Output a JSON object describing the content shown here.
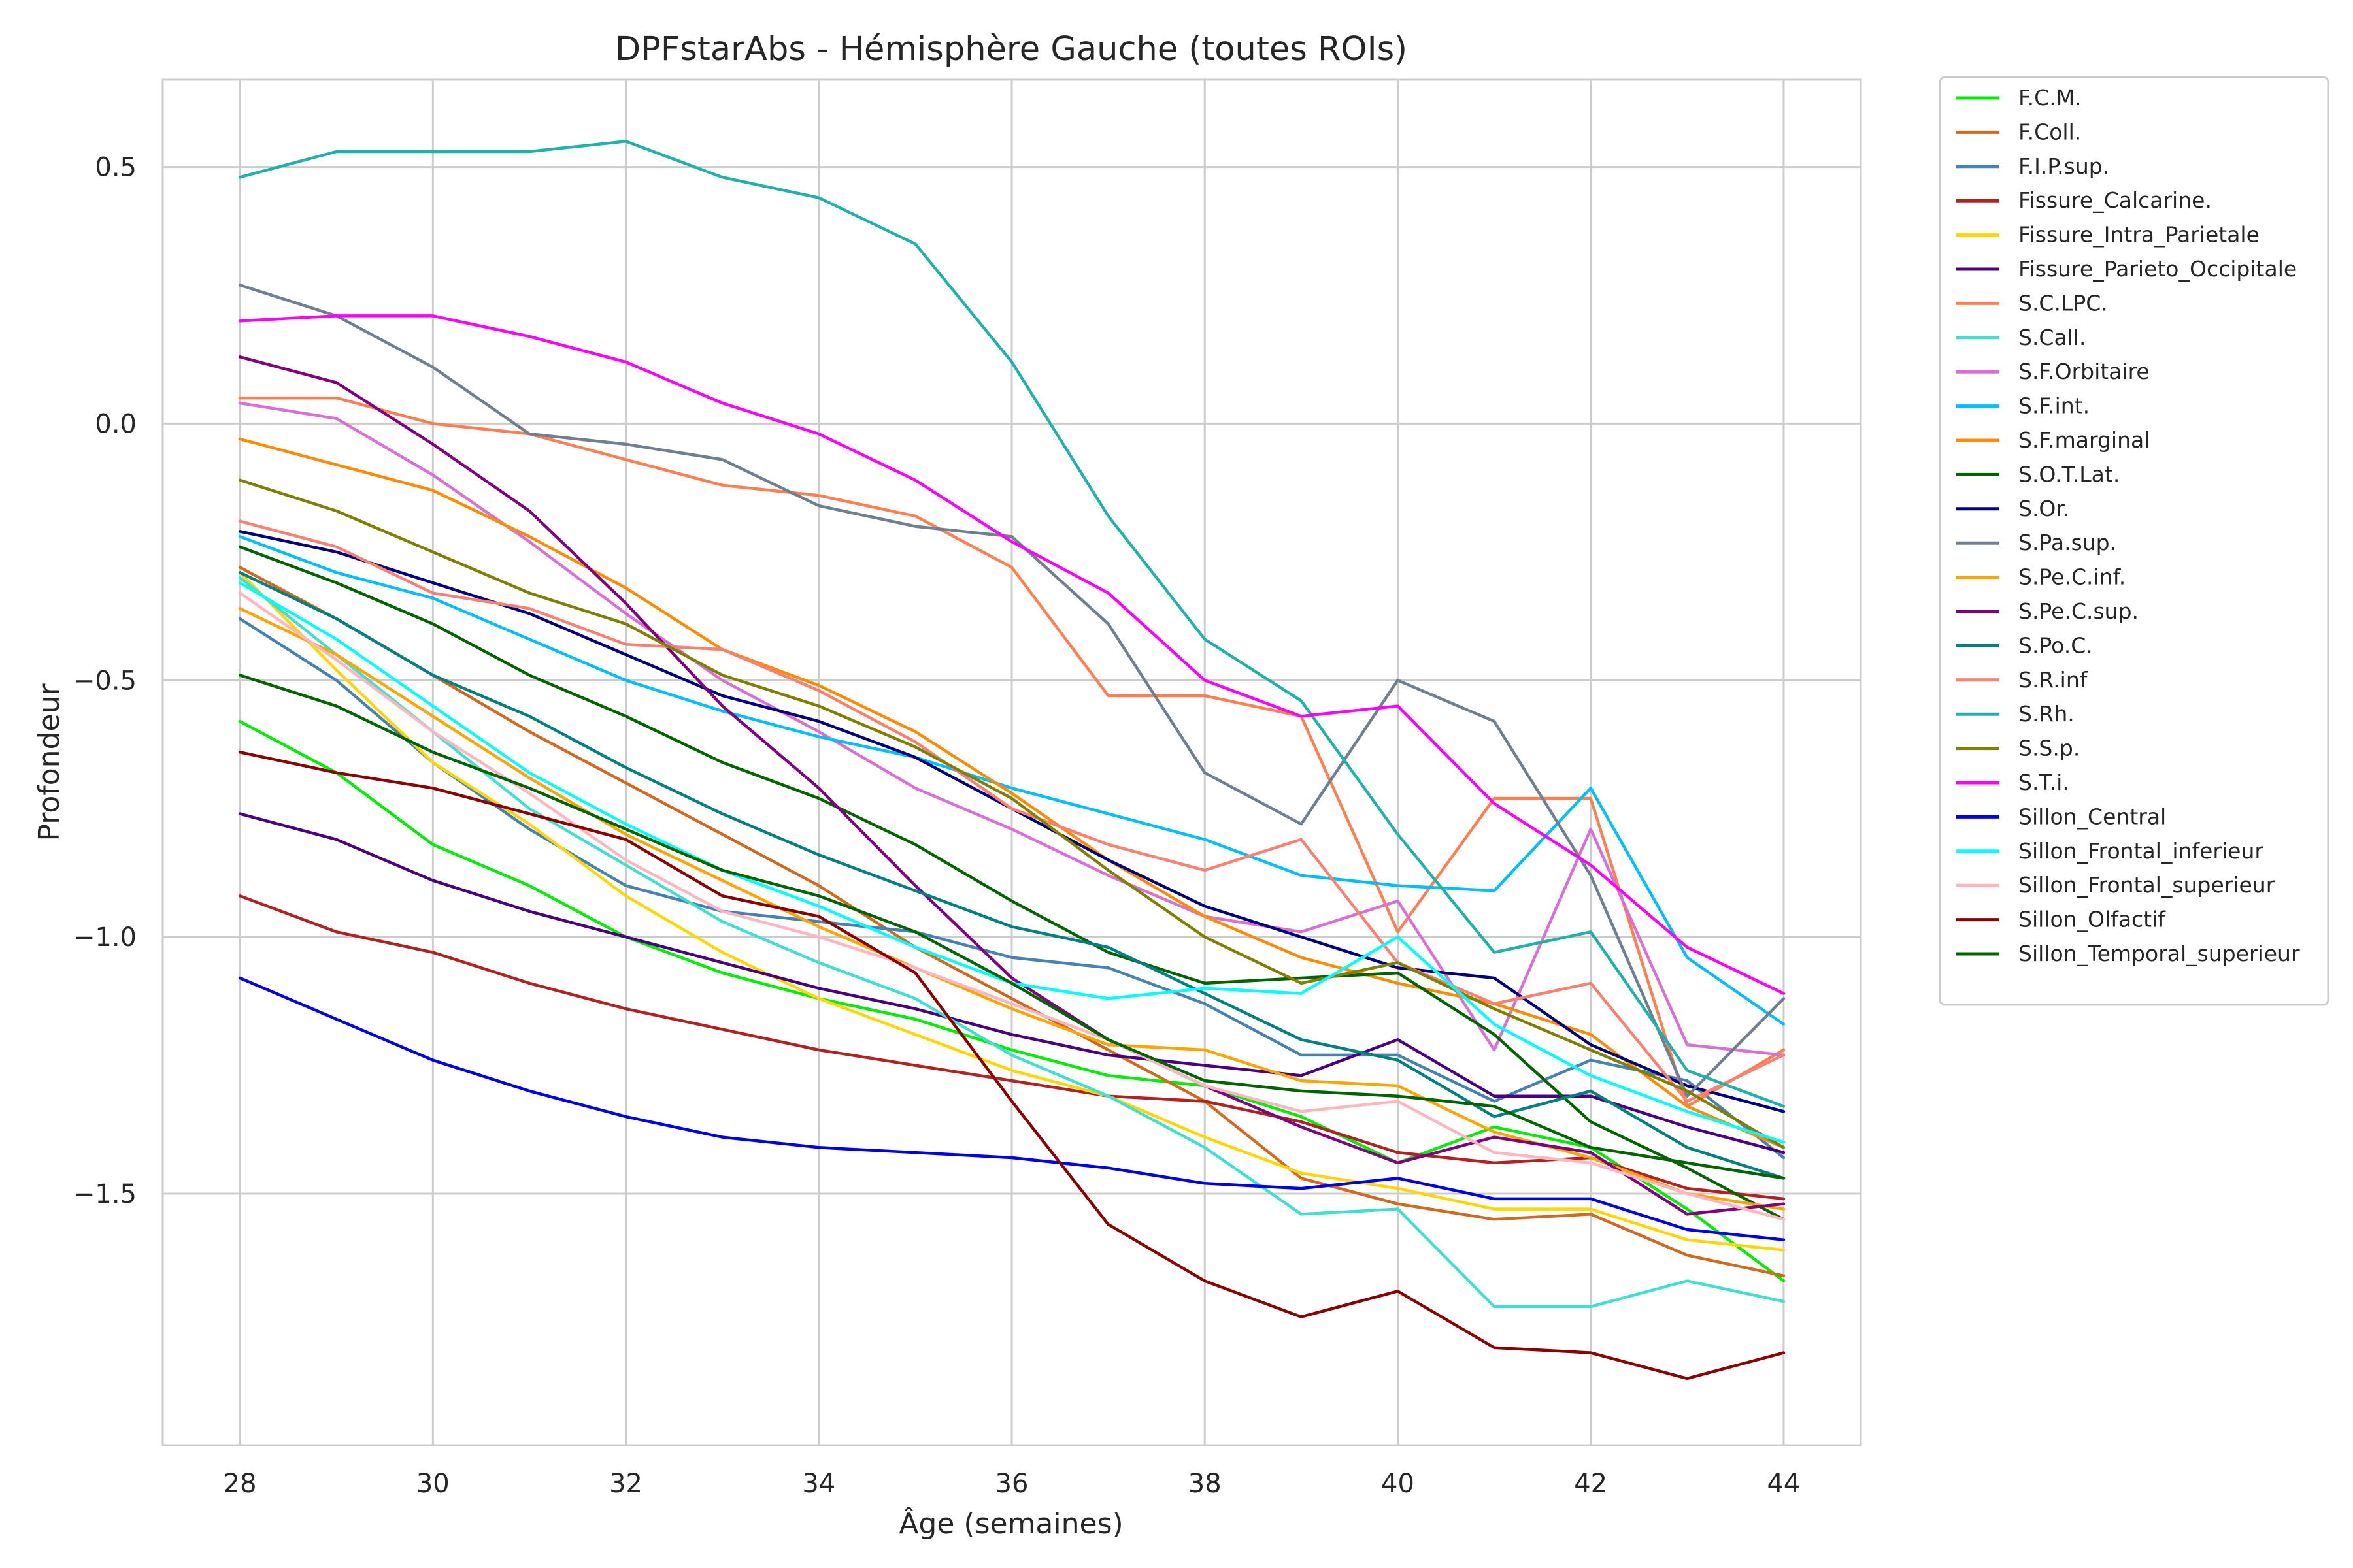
{
  "chart_data": {
    "type": "line",
    "title": "DPFstarAbs - Hémisphère Gauche (toutes ROIs)",
    "xlabel": "Âge (semaines)",
    "ylabel": "Profondeur",
    "xlim": [
      27.2,
      44.8
    ],
    "ylim": [
      -1.99,
      0.67
    ],
    "x_ticks": [
      28,
      30,
      32,
      34,
      36,
      38,
      40,
      42,
      44
    ],
    "x_tick_labels": [
      "28",
      "30",
      "32",
      "34",
      "36",
      "38",
      "40",
      "42",
      "44"
    ],
    "y_ticks": [
      0.5,
      0.0,
      -0.5,
      -1.0,
      -1.5
    ],
    "y_tick_labels": [
      "0.5",
      "0.0",
      "−0.5",
      "−1.0",
      "−1.5"
    ],
    "grid": true,
    "legend_position": "outside-right",
    "x": [
      28,
      29,
      30,
      31,
      32,
      33,
      34,
      35,
      36,
      37,
      38,
      39,
      40,
      41,
      42,
      43,
      44
    ],
    "series": [
      {
        "name": "F.C.M.",
        "color": "#00ee00",
        "values": [
          -0.58,
          -0.68,
          -0.82,
          -0.9,
          -1.0,
          -1.07,
          -1.12,
          -1.16,
          -1.22,
          -1.27,
          -1.29,
          -1.35,
          -1.44,
          -1.37,
          -1.41,
          -1.53,
          -1.67
        ]
      },
      {
        "name": "F.Coll.",
        "color": "#d2691e",
        "values": [
          -0.28,
          -0.38,
          -0.49,
          -0.6,
          -0.7,
          -0.8,
          -0.9,
          -1.02,
          -1.12,
          -1.22,
          -1.32,
          -1.47,
          -1.52,
          -1.55,
          -1.54,
          -1.62,
          -1.66
        ]
      },
      {
        "name": "F.I.P.sup.",
        "color": "#4682b4",
        "values": [
          -0.38,
          -0.5,
          -0.66,
          -0.79,
          -0.9,
          -0.95,
          -0.97,
          -0.99,
          -1.04,
          -1.06,
          -1.13,
          -1.23,
          -1.23,
          -1.32,
          -1.24,
          -1.28,
          -1.43
        ]
      },
      {
        "name": "Fissure_Calcarine.",
        "color": "#b22222",
        "values": [
          -0.92,
          -0.99,
          -1.03,
          -1.09,
          -1.14,
          -1.18,
          -1.22,
          -1.25,
          -1.28,
          -1.31,
          -1.32,
          -1.36,
          -1.42,
          -1.44,
          -1.43,
          -1.49,
          -1.51
        ]
      },
      {
        "name": "Fissure_Intra_Parietale",
        "color": "#ffd700",
        "values": [
          -0.29,
          -0.48,
          -0.66,
          -0.78,
          -0.92,
          -1.03,
          -1.12,
          -1.19,
          -1.26,
          -1.31,
          -1.39,
          -1.46,
          -1.49,
          -1.53,
          -1.53,
          -1.59,
          -1.61
        ]
      },
      {
        "name": "Fissure_Parieto_Occipitale",
        "color": "#4b0082",
        "values": [
          -0.76,
          -0.81,
          -0.89,
          -0.95,
          -1.0,
          -1.05,
          -1.1,
          -1.14,
          -1.19,
          -1.23,
          -1.25,
          -1.27,
          -1.2,
          -1.31,
          -1.31,
          -1.37,
          -1.42
        ]
      },
      {
        "name": "S.C.LPC.",
        "color": "#ff7f50",
        "values": [
          0.05,
          0.05,
          0.0,
          -0.02,
          -0.07,
          -0.12,
          -0.14,
          -0.18,
          -0.28,
          -0.53,
          -0.53,
          -0.57,
          -0.99,
          -0.73,
          -0.73,
          -1.33,
          -1.22
        ]
      },
      {
        "name": "S.Call.",
        "color": "#40e0d0",
        "values": [
          -0.3,
          -0.45,
          -0.6,
          -0.75,
          -0.86,
          -0.97,
          -1.05,
          -1.12,
          -1.23,
          -1.31,
          -1.41,
          -1.54,
          -1.53,
          -1.72,
          -1.72,
          -1.67,
          -1.71
        ]
      },
      {
        "name": "S.F.Orbitaire",
        "color": "#da70d6",
        "values": [
          0.04,
          0.01,
          -0.1,
          -0.23,
          -0.37,
          -0.5,
          -0.6,
          -0.71,
          -0.79,
          -0.88,
          -0.96,
          -0.99,
          -0.93,
          -1.22,
          -0.79,
          -1.21,
          -1.23
        ]
      },
      {
        "name": "S.F.int.",
        "color": "#00bfff",
        "values": [
          -0.22,
          -0.29,
          -0.34,
          -0.42,
          -0.5,
          -0.56,
          -0.61,
          -0.65,
          -0.71,
          -0.76,
          -0.81,
          -0.88,
          -0.9,
          -0.91,
          -0.71,
          -1.04,
          -1.17
        ]
      },
      {
        "name": "S.F.marginal",
        "color": "#ff8c00",
        "values": [
          -0.03,
          -0.08,
          -0.13,
          -0.22,
          -0.32,
          -0.44,
          -0.51,
          -0.6,
          -0.72,
          -0.85,
          -0.96,
          -1.04,
          -1.09,
          -1.13,
          -1.19,
          -1.33,
          -1.41
        ]
      },
      {
        "name": "S.O.T.Lat.",
        "color": "#006400",
        "values": [
          -0.24,
          -0.31,
          -0.39,
          -0.49,
          -0.57,
          -0.66,
          -0.73,
          -0.82,
          -0.93,
          -1.03,
          -1.09,
          -1.08,
          -1.07,
          -1.19,
          -1.36,
          -1.45,
          -1.55
        ]
      },
      {
        "name": "S.Or.",
        "color": "#000080",
        "values": [
          -0.21,
          -0.25,
          -0.31,
          -0.37,
          -0.45,
          -0.53,
          -0.58,
          -0.65,
          -0.75,
          -0.85,
          -0.94,
          -1.0,
          -1.06,
          -1.08,
          -1.21,
          -1.29,
          -1.34
        ]
      },
      {
        "name": "S.Pa.sup.",
        "color": "#708090",
        "values": [
          0.27,
          0.21,
          0.11,
          -0.02,
          -0.04,
          -0.07,
          -0.16,
          -0.2,
          -0.22,
          -0.39,
          -0.68,
          -0.78,
          -0.5,
          -0.58,
          -0.88,
          -1.31,
          -1.12
        ]
      },
      {
        "name": "S.Pe.C.inf.",
        "color": "#ffa500",
        "values": [
          -0.36,
          -0.45,
          -0.57,
          -0.69,
          -0.8,
          -0.89,
          -0.98,
          -1.06,
          -1.14,
          -1.21,
          -1.22,
          -1.28,
          -1.29,
          -1.38,
          -1.43,
          -1.5,
          -1.53
        ]
      },
      {
        "name": "S.Pe.C.sup.",
        "color": "#800080",
        "values": [
          0.13,
          0.08,
          -0.04,
          -0.17,
          -0.35,
          -0.55,
          -0.71,
          -0.9,
          -1.08,
          -1.2,
          -1.29,
          -1.37,
          -1.44,
          -1.39,
          -1.42,
          -1.54,
          -1.52
        ]
      },
      {
        "name": "S.Po.C.",
        "color": "#008080",
        "values": [
          -0.29,
          -0.38,
          -0.49,
          -0.57,
          -0.67,
          -0.76,
          -0.84,
          -0.91,
          -0.98,
          -1.02,
          -1.11,
          -1.2,
          -1.24,
          -1.35,
          -1.3,
          -1.41,
          -1.47
        ]
      },
      {
        "name": "S.R.inf",
        "color": "#fa8072",
        "values": [
          -0.19,
          -0.24,
          -0.33,
          -0.36,
          -0.43,
          -0.44,
          -0.52,
          -0.62,
          -0.75,
          -0.82,
          -0.87,
          -0.81,
          -1.05,
          -1.13,
          -1.09,
          -1.32,
          -1.23
        ]
      },
      {
        "name": "S.Rh.",
        "color": "#20b2aa",
        "values": [
          0.48,
          0.53,
          0.53,
          0.53,
          0.55,
          0.48,
          0.44,
          0.35,
          0.12,
          -0.18,
          -0.42,
          -0.54,
          -0.8,
          -1.03,
          -0.99,
          -1.26,
          -1.33
        ]
      },
      {
        "name": "S.S.p.",
        "color": "#808000",
        "values": [
          -0.11,
          -0.17,
          -0.25,
          -0.33,
          -0.39,
          -0.49,
          -0.55,
          -0.63,
          -0.73,
          -0.87,
          -1.0,
          -1.09,
          -1.05,
          -1.14,
          -1.22,
          -1.3,
          -1.41
        ]
      },
      {
        "name": "S.T.i.",
        "color": "#ff00ff",
        "values": [
          0.2,
          0.21,
          0.21,
          0.17,
          0.12,
          0.04,
          -0.02,
          -0.11,
          -0.23,
          -0.33,
          -0.5,
          -0.57,
          -0.55,
          -0.74,
          -0.86,
          -1.02,
          -1.11
        ]
      },
      {
        "name": "Sillon_Central",
        "color": "#0000ee",
        "values": [
          -1.08,
          -1.16,
          -1.24,
          -1.3,
          -1.35,
          -1.39,
          -1.41,
          -1.42,
          -1.43,
          -1.45,
          -1.48,
          -1.49,
          -1.47,
          -1.51,
          -1.51,
          -1.57,
          -1.59
        ]
      },
      {
        "name": "Sillon_Frontal_inferieur",
        "color": "#00ffff",
        "values": [
          -0.31,
          -0.42,
          -0.55,
          -0.68,
          -0.78,
          -0.87,
          -0.94,
          -1.02,
          -1.09,
          -1.12,
          -1.1,
          -1.11,
          -1.0,
          -1.17,
          -1.27,
          -1.34,
          -1.4
        ]
      },
      {
        "name": "Sillon_Frontal_superieur",
        "color": "#ffb6c1",
        "values": [
          -0.33,
          -0.46,
          -0.6,
          -0.72,
          -0.85,
          -0.95,
          -1.0,
          -1.06,
          -1.13,
          -1.2,
          -1.29,
          -1.34,
          -1.32,
          -1.42,
          -1.44,
          -1.5,
          -1.55
        ]
      },
      {
        "name": "Sillon_Olfactif",
        "color": "#8b0000",
        "values": [
          -0.64,
          -0.68,
          -0.71,
          -0.76,
          -0.81,
          -0.92,
          -0.96,
          -1.07,
          -1.32,
          -1.56,
          -1.67,
          -1.74,
          -1.69,
          -1.8,
          -1.81,
          -1.86,
          -1.81
        ]
      },
      {
        "name": "Sillon_Temporal_superieur",
        "color": "#006400",
        "values": [
          -0.49,
          -0.55,
          -0.64,
          -0.71,
          -0.79,
          -0.87,
          -0.92,
          -0.99,
          -1.09,
          -1.2,
          -1.28,
          -1.3,
          -1.31,
          -1.33,
          -1.41,
          -1.44,
          -1.47
        ]
      }
    ]
  }
}
